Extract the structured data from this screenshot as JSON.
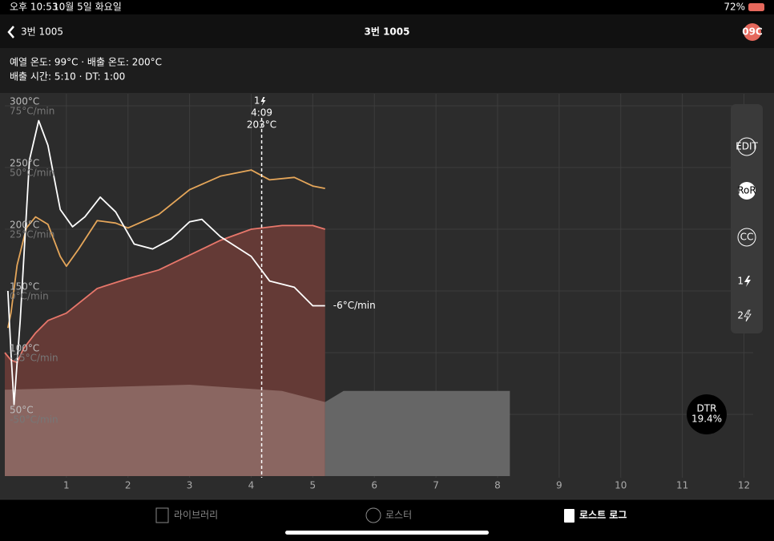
{
  "status_bar": {
    "time": "오후 10:53",
    "date": "10월 5일 화요일",
    "battery": "72%"
  },
  "nav": {
    "back": "3번 1005",
    "title": "3번 1005",
    "badge": "09C"
  },
  "info": {
    "line1": "예열 온도: 99°C · 배출 온도: 200°C",
    "line2": "배출 시간: 5:10 · DT: 1:00"
  },
  "chart_data": {
    "type": "line",
    "xlim": [
      0,
      12.15
    ],
    "xticks": [
      1,
      2,
      3,
      4,
      5,
      6,
      7,
      8,
      9,
      10,
      11,
      12
    ],
    "ylim": [
      0,
      300
    ],
    "yticks": [
      {
        "value": 50,
        "label": "50°C"
      },
      {
        "value": 100,
        "label": "100°C"
      },
      {
        "value": 150,
        "label": "150°C"
      },
      {
        "value": 200,
        "label": "200°C"
      },
      {
        "value": 250,
        "label": "250°C"
      },
      {
        "value": 300,
        "label": "300°C"
      }
    ],
    "y2lim": [
      -75,
      75
    ],
    "y2ticks": [
      {
        "value": -50,
        "label": "-50°C/min"
      },
      {
        "value": -25,
        "label": "-25°C/min"
      },
      {
        "value": 0,
        "label": "0°C/min"
      },
      {
        "value": 25,
        "label": "25°C/min"
      },
      {
        "value": 50,
        "label": "50°C/min"
      },
      {
        "value": 75,
        "label": "75°C/min"
      }
    ],
    "grid": true,
    "series": [
      {
        "color": "#e8776b",
        "fill": "#643a36",
        "area": true,
        "x": [
          0,
          0.1,
          0.2,
          0.3,
          0.5,
          0.7,
          1,
          1.5,
          2,
          2.5,
          3,
          3.5,
          4,
          4.5,
          5,
          5.2
        ],
        "values": [
          100,
          94,
          92,
          103,
          116,
          126,
          132,
          152,
          160,
          167,
          179,
          191,
          200,
          203,
          203,
          200
        ]
      },
      {
        "color": "#e5a65a",
        "x": [
          0.05,
          0.1,
          0.2,
          0.35,
          0.5,
          0.7,
          0.9,
          1,
          1.2,
          1.5,
          1.8,
          2,
          2.5,
          3,
          3.5,
          4,
          4.3,
          4.7,
          5,
          5.2
        ],
        "values": [
          120,
          132,
          171,
          201,
          210,
          204,
          178,
          170,
          184,
          207,
          205,
          201,
          212,
          232,
          243,
          248,
          240,
          242,
          235,
          233
        ]
      },
      {
        "color": "#ffffff",
        "axis": "y2",
        "x": [
          0.05,
          0.1,
          0.15,
          0.25,
          0.4,
          0.55,
          0.7,
          0.9,
          1.1,
          1.3,
          1.55,
          1.8,
          2.1,
          2.4,
          2.7,
          3,
          3.2,
          3.5,
          4,
          4.3,
          4.7,
          5,
          5.2
        ],
        "values": [
          0,
          -25,
          -46,
          -12,
          53,
          69,
          59,
          33,
          26,
          30,
          38,
          32,
          19,
          17,
          21,
          28,
          29,
          22,
          14,
          4,
          1.5,
          -6,
          -6
        ]
      },
      {
        "fill": "#8a6661",
        "area": true,
        "x": [
          0,
          3,
          4.5,
          5.2
        ],
        "values": [
          70,
          74,
          69,
          60
        ]
      },
      {
        "fill": "#666666",
        "area": true,
        "x": [
          5.2,
          5.5,
          8.2
        ],
        "values": [
          60,
          69,
          69
        ]
      }
    ],
    "event": {
      "x": 4.17,
      "count": "1",
      "time": "4:09",
      "temp": "203°C"
    },
    "ror_end_label": "-6°C/min"
  },
  "side_panel": {
    "buttons": [
      "EDIT",
      "RoR",
      "CC",
      "1",
      "2"
    ]
  },
  "dtr": {
    "label": "DTR",
    "value": "19.4%"
  },
  "tabs": [
    "라이브러리",
    "로스터",
    "로스트 로그"
  ]
}
